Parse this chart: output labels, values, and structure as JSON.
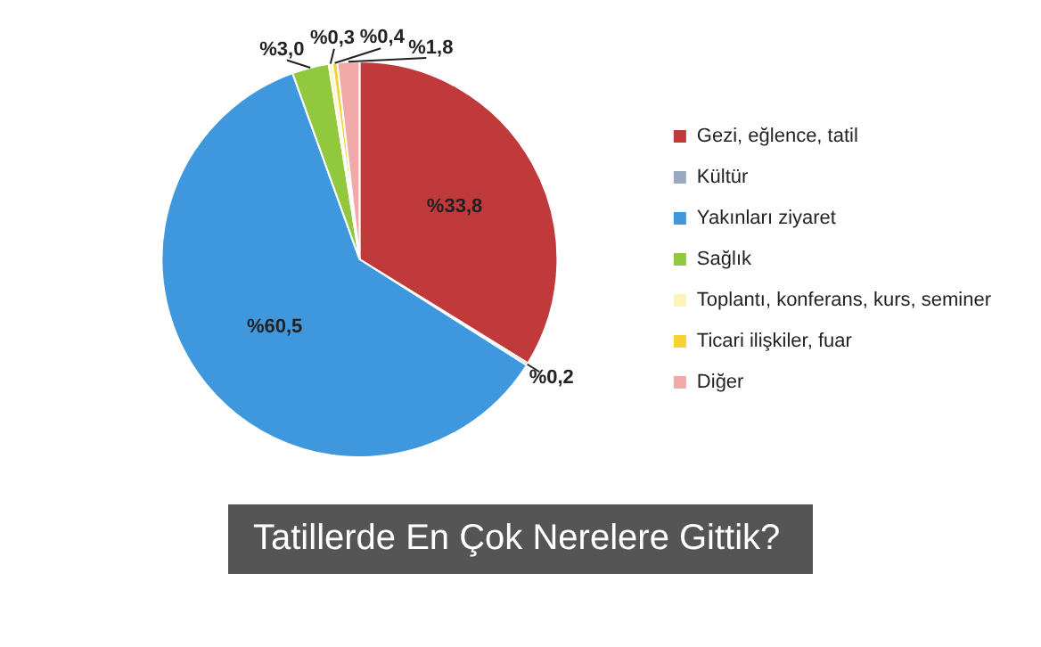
{
  "chart_data": {
    "type": "pie",
    "title": "Tatillerde En Çok Nerelere Gittik?",
    "categories": [
      "Gezi, eğlence, tatil",
      "Kültür",
      "Yakınları ziyaret",
      "Sağlık",
      "Toplantı, konferans, kurs, seminer",
      "Ticari ilişkiler, fuar",
      "Diğer"
    ],
    "values": [
      33.8,
      0.2,
      60.5,
      3.0,
      0.3,
      0.4,
      1.8
    ],
    "colors": [
      "#c0393b",
      "#9aa8c0",
      "#3f97dd",
      "#92c83e",
      "#fff3b8",
      "#f5d232",
      "#f2aaa8"
    ],
    "value_labels": [
      "%33,8",
      "%0,2",
      "%60,5",
      "%3,0",
      "%0,3",
      "%0,4",
      "%1,8"
    ],
    "legend": "right"
  }
}
